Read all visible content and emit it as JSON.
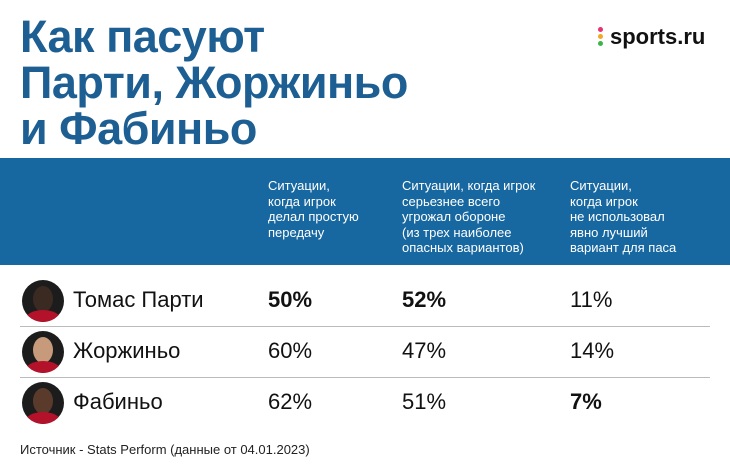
{
  "title": [
    "Как пасуют",
    "Парти, Жоржиньо",
    "и Фабиньо"
  ],
  "logo": "sports.ru",
  "table": {
    "columns": [
      [
        "Ситуации,",
        "когда игрок",
        "делал простую",
        "передачу"
      ],
      [
        "Ситуации, когда игрок",
        "серьезнее всего",
        "угрожал обороне",
        "(из трех наиболее",
        "опасных вариантов)"
      ],
      [
        "Ситуации,",
        "когда игрок",
        "не использовал",
        "явно лучший",
        "вариант для паса"
      ]
    ],
    "rows": [
      {
        "name": "Томас Парти",
        "values": [
          "50%",
          "52%",
          "11%"
        ],
        "bold": [
          true,
          true,
          false
        ]
      },
      {
        "name": "Жоржиньо",
        "values": [
          "60%",
          "47%",
          "14%"
        ],
        "bold": [
          false,
          false,
          false
        ]
      },
      {
        "name": "Фабиньо",
        "values": [
          "62%",
          "51%",
          "7%"
        ],
        "bold": [
          false,
          false,
          true
        ]
      }
    ]
  },
  "source": "Источник - Stats Perform (данные от 04.01.2023)"
}
